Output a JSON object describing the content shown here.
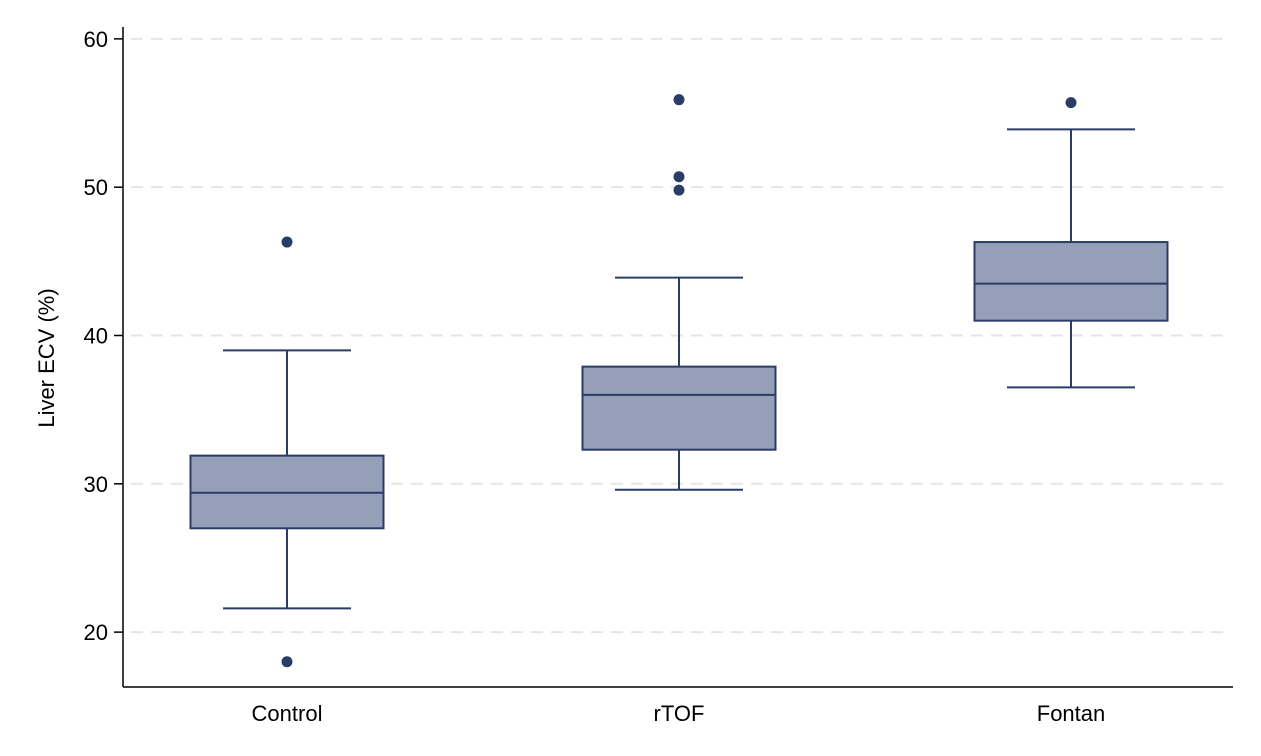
{
  "chart_data": {
    "type": "box",
    "ylabel": "Liver ECV (%)",
    "xlabel": "",
    "ylim": [
      16.3,
      60.8
    ],
    "yticks": [
      20,
      30,
      40,
      50,
      60
    ],
    "grid": true,
    "colors": {
      "fill": "#959fb7",
      "stroke": "#2a3d66",
      "grid": "#e5e5e5",
      "axis": "#000000"
    },
    "categories": [
      "Control",
      "rTOF",
      "Fontan"
    ],
    "boxes": [
      {
        "category": "Control",
        "whisker_low": 21.6,
        "q1": 27.0,
        "median": 29.4,
        "q3": 31.9,
        "whisker_high": 39.0,
        "outliers": [
          46.3,
          18.0
        ]
      },
      {
        "category": "rTOF",
        "whisker_low": 29.6,
        "q1": 32.3,
        "median": 36.0,
        "q3": 37.9,
        "whisker_high": 43.9,
        "outliers": [
          55.9,
          50.7,
          49.8
        ]
      },
      {
        "category": "Fontan",
        "whisker_low": 36.5,
        "q1": 41.0,
        "median": 43.5,
        "q3": 46.3,
        "whisker_high": 53.9,
        "outliers": [
          55.7
        ]
      }
    ]
  }
}
